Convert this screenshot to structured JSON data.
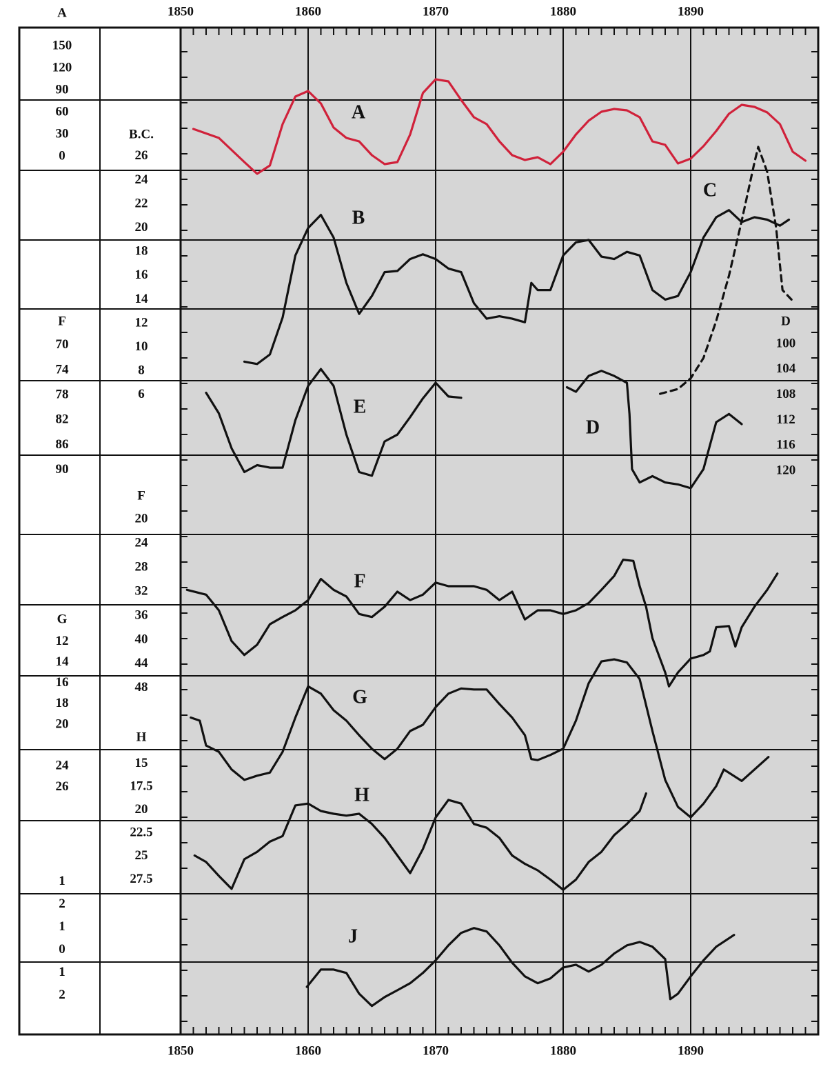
{
  "chart_data": {
    "type": "line",
    "xlim": [
      1850,
      1900
    ],
    "xticks": [
      1850,
      1860,
      1870,
      1880,
      1890
    ],
    "grid": true,
    "series": [
      {
        "name": "A",
        "color": "#d0213a",
        "dashed": false,
        "scale_label": "A",
        "ylim": [
          175.3,
          -1193.4
        ],
        "yticks": [
          150,
          120,
          90,
          60,
          30,
          0
        ],
        "x": [
          1851,
          1853,
          1855,
          1856,
          1857,
          1858,
          1859,
          1860,
          1861,
          1862,
          1863,
          1864,
          1865,
          1866,
          1867,
          1868,
          1869,
          1870,
          1871,
          1872,
          1873,
          1874,
          1875,
          1876,
          1877,
          1878,
          1879,
          1880,
          1881,
          1882,
          1883,
          1884,
          1885,
          1886,
          1887,
          1888,
          1889,
          1890,
          1891,
          1892,
          1893,
          1894,
          1895,
          1896,
          1897,
          1898,
          1899
        ],
        "values": [
          37.5,
          25.3,
          -7.5,
          -23.4,
          -12.2,
          44.1,
          81.6,
          89.1,
          72.2,
          39.4,
          25.3,
          20.6,
          1.9,
          -10.3,
          -7.5,
          30,
          86.3,
          105,
          102.2,
          76.9,
          53.4,
          44.1,
          20.6,
          1.9,
          -4.7,
          -0.9,
          -10.3,
          6.6,
          30,
          48.8,
          60.9,
          64.7,
          62.8,
          53.4,
          20.6,
          15.9,
          -9.4,
          -2.8,
          14.1,
          34.7,
          58.1,
          70.3,
          67.5,
          60,
          44.1,
          6.6,
          -5.6
        ]
      },
      {
        "name": "B",
        "color": "#111111",
        "dashed": false,
        "scale_label": "B.C.",
        "ylim": [
          36.8,
          -47.6
        ],
        "yticks": [
          26,
          24,
          22,
          20,
          18,
          16,
          14,
          12,
          10,
          8,
          6
        ],
        "x": [
          1855,
          1856,
          1857,
          1858,
          1859,
          1860,
          1861,
          1862,
          1863,
          1864,
          1865,
          1866,
          1867,
          1868,
          1869,
          1870,
          1871,
          1872,
          1873,
          1874,
          1875,
          1876,
          1877,
          1877.5,
          1878,
          1879,
          1880,
          1881,
          1882,
          1883,
          1884,
          1885,
          1886,
          1887,
          1888,
          1889,
          1890,
          1891,
          1892,
          1893,
          1894,
          1895,
          1896,
          1897,
          1897.7
        ],
        "values": [
          8.8,
          8.6,
          9.4,
          12.5,
          17.7,
          20.0,
          21.1,
          19.2,
          15.4,
          12.8,
          14.3,
          16.3,
          16.4,
          17.4,
          17.8,
          17.4,
          16.6,
          16.3,
          13.7,
          12.4,
          12.6,
          12.4,
          12.1,
          15.4,
          14.8,
          14.8,
          17.7,
          18.8,
          19.0,
          17.6,
          17.4,
          18.0,
          17.7,
          14.8,
          14.0,
          14.3,
          16.3,
          19.2,
          20.9,
          21.5,
          20.5,
          20.9,
          20.7,
          20.2,
          20.7
        ]
      },
      {
        "name": "C",
        "color": "#111111",
        "dashed": true,
        "ylim": [
          36.8,
          -47.6
        ],
        "x": [
          1887.6,
          1889,
          1890,
          1891,
          1892,
          1893,
          1894,
          1895,
          1895.3,
          1896,
          1896.7,
          1897.2,
          1897.9
        ],
        "values": [
          6.1,
          6.5,
          7.4,
          9.1,
          12.2,
          16.0,
          20.6,
          25.5,
          26.8,
          24.7,
          20.0,
          14.8,
          14.0
        ]
      },
      {
        "name": "D",
        "color": "#111111",
        "dashed": false,
        "scale_label": "D",
        "ylim": [
          50.1,
          208.8
        ],
        "yticks": [
          100,
          104,
          108,
          112,
          116,
          120
        ],
        "x": [
          1880.3,
          1881,
          1882,
          1883,
          1884,
          1885,
          1885.2,
          1885.4,
          1886,
          1887,
          1888,
          1889,
          1890,
          1891,
          1892,
          1893,
          1894
        ],
        "values": [
          106.8,
          107.5,
          105.0,
          104.2,
          105.0,
          106.1,
          111.0,
          119.7,
          121.8,
          120.8,
          121.8,
          122.1,
          122.7,
          119.7,
          112.3,
          111.0,
          112.6
        ]
      },
      {
        "name": "E",
        "color": "#111111",
        "dashed": false,
        "scale_label": "F",
        "ylim": [
          19.1,
          180.4
        ],
        "yticks": [
          70,
          74,
          78,
          82,
          86,
          90
        ],
        "x": [
          1852,
          1853,
          1854,
          1855,
          1856,
          1857,
          1858,
          1859,
          1860,
          1861,
          1862,
          1863,
          1864,
          1865,
          1866,
          1867,
          1868,
          1869,
          1870,
          1871,
          1872
        ],
        "values": [
          77.6,
          80.9,
          86.5,
          90.3,
          89.2,
          89.6,
          89.6,
          82.0,
          76.5,
          73.8,
          76.5,
          84.3,
          90.3,
          90.9,
          85.4,
          84.3,
          81.5,
          78.5,
          76.0,
          78.2,
          78.4
        ]
      },
      {
        "name": "F",
        "color": "#111111",
        "dashed": false,
        "scale_label": "F",
        "ylim": [
          -61.5,
          105.4
        ],
        "yticks": [
          20,
          24,
          28,
          32,
          36,
          40,
          44,
          48
        ],
        "x": [
          1850.5,
          1852,
          1853,
          1854,
          1855,
          1856,
          1857,
          1858,
          1859,
          1860,
          1861,
          1862,
          1863,
          1864,
          1865,
          1866,
          1867,
          1868,
          1869,
          1870,
          1871,
          1872,
          1873,
          1874,
          1875,
          1876,
          1877,
          1878,
          1879,
          1880,
          1881,
          1882,
          1883,
          1884,
          1884.7,
          1885.5,
          1886,
          1886.5,
          1887,
          1888,
          1888.3,
          1889,
          1890,
          1891,
          1891.5,
          1892,
          1893,
          1893.5,
          1894,
          1895,
          1896,
          1896.8
        ],
        "values": [
          31.7,
          32.5,
          35.1,
          40.2,
          42.5,
          40.8,
          37.4,
          36.2,
          35.1,
          33.4,
          29.9,
          31.7,
          32.8,
          35.7,
          36.2,
          34.5,
          32.0,
          33.4,
          32.5,
          30.5,
          31.1,
          31.1,
          31.1,
          31.7,
          33.4,
          32.0,
          36.6,
          35.1,
          35.1,
          35.7,
          35.1,
          33.9,
          31.7,
          29.4,
          26.7,
          26.9,
          31.1,
          34.5,
          39.7,
          45.4,
          47.7,
          45.4,
          43.1,
          42.5,
          41.9,
          37.9,
          37.7,
          41.1,
          37.9,
          34.5,
          31.7,
          29.0
        ]
      },
      {
        "name": "G",
        "color": "#111111",
        "dashed": false,
        "scale_label": "G",
        "ylim": [
          -47.1,
          49.8
        ],
        "yticks": [
          12,
          14,
          16,
          18,
          20,
          24,
          26
        ],
        "x": [
          1850.8,
          1851.5,
          1852,
          1853,
          1854,
          1855,
          1856,
          1857,
          1858,
          1859,
          1860,
          1861,
          1862,
          1863,
          1864,
          1865,
          1866,
          1867,
          1868,
          1869,
          1870,
          1871,
          1872,
          1873,
          1874,
          1875,
          1876,
          1877,
          1877.5,
          1878,
          1879,
          1880,
          1881,
          1882,
          1883,
          1884,
          1885,
          1886,
          1887,
          1888,
          1889,
          1890,
          1891,
          1892,
          1892.6,
          1894,
          1896.1
        ],
        "values": [
          19.3,
          19.6,
          22.0,
          22.6,
          24.3,
          25.3,
          24.9,
          24.6,
          22.6,
          19.3,
          16.3,
          17.0,
          18.6,
          19.6,
          21.0,
          22.3,
          23.3,
          22.3,
          20.6,
          20.0,
          18.3,
          17.0,
          16.5,
          16.6,
          16.6,
          18.0,
          19.3,
          21.0,
          23.3,
          23.4,
          22.9,
          22.3,
          19.6,
          16.0,
          13.9,
          13.7,
          14.0,
          15.6,
          20.6,
          25.3,
          27.9,
          28.9,
          27.6,
          25.9,
          24.3,
          25.4,
          23.1
        ]
      },
      {
        "name": "H",
        "color": "#111111",
        "dashed": false,
        "scale_label": "H",
        "ylim": [
          -64.4,
          44.2
        ],
        "yticks": [
          15,
          17.5,
          20,
          22.5,
          25,
          27.5
        ],
        "x": [
          1851.1,
          1852,
          1853,
          1854,
          1855,
          1856,
          1857,
          1858,
          1859,
          1860,
          1861,
          1862,
          1863,
          1864,
          1865,
          1866,
          1867,
          1868,
          1869,
          1870,
          1871,
          1872,
          1873,
          1874,
          1875,
          1876,
          1877,
          1878,
          1879,
          1880,
          1881,
          1882,
          1883,
          1884,
          1885,
          1886,
          1886.5
        ],
        "values": [
          24.9,
          25.6,
          27.1,
          28.5,
          25.3,
          24.5,
          23.4,
          22.8,
          19.5,
          19.3,
          20.1,
          20.4,
          20.6,
          20.4,
          21.5,
          23.0,
          24.9,
          26.8,
          24.2,
          20.8,
          18.9,
          19.3,
          21.5,
          21.9,
          23.0,
          24.9,
          25.8,
          26.5,
          27.5,
          28.6,
          27.5,
          25.6,
          24.5,
          22.7,
          21.5,
          20.1,
          18.2
        ]
      },
      {
        "name": "J",
        "color": "#111111",
        "dashed": false,
        "ylim": [
          40.5,
          -3.7
        ],
        "yticks": [
          {
            "value": 3,
            "label": "1"
          },
          2,
          1,
          0,
          {
            "value": -1,
            "label": "1"
          },
          {
            "value": -2,
            "label": "2"
          }
        ],
        "x": [
          1859.9,
          1861,
          1862,
          1863,
          1864,
          1865,
          1866,
          1867,
          1868,
          1869,
          1870,
          1871,
          1872,
          1873,
          1874,
          1875,
          1876,
          1877,
          1878,
          1879,
          1880,
          1881,
          1882,
          1883,
          1884,
          1885,
          1886,
          1887,
          1888,
          1888.4,
          1889,
          1890,
          1891,
          1892,
          1893.4
        ],
        "values": [
          -1.61,
          -0.85,
          -0.85,
          -1.0,
          -1.91,
          -2.45,
          -2.06,
          -1.76,
          -1.45,
          -1.0,
          -0.45,
          0.21,
          0.76,
          0.97,
          0.82,
          0.21,
          -0.55,
          -1.15,
          -1.45,
          -1.24,
          -0.76,
          -0.64,
          -0.94,
          -0.64,
          -0.15,
          0.21,
          0.36,
          0.15,
          -0.39,
          -2.15,
          -1.91,
          -1.15,
          -0.45,
          0.15,
          0.67
        ]
      }
    ]
  }
}
